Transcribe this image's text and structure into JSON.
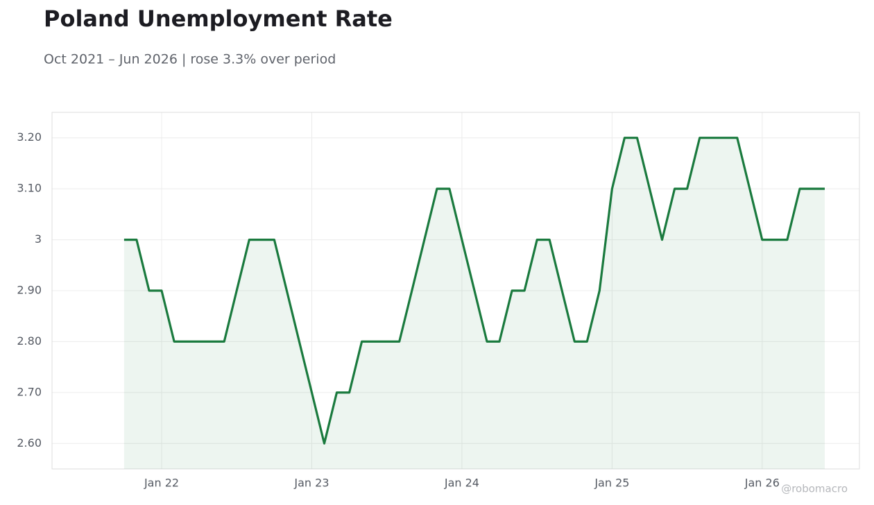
{
  "chart_data": {
    "type": "line",
    "title": "Poland Unemployment Rate",
    "subtitle": "Oct 2021 – Jun 2026 | rose 3.3% over period",
    "watermark": "@robomacro",
    "x": [
      "2021-10",
      "2021-11",
      "2021-12",
      "2022-01",
      "2022-02",
      "2022-03",
      "2022-04",
      "2022-05",
      "2022-06",
      "2022-07",
      "2022-08",
      "2022-09",
      "2022-10",
      "2022-11",
      "2022-12",
      "2023-01",
      "2023-02",
      "2023-03",
      "2023-04",
      "2023-05",
      "2023-06",
      "2023-07",
      "2023-08",
      "2023-09",
      "2023-10",
      "2023-11",
      "2023-12",
      "2024-01",
      "2024-02",
      "2024-03",
      "2024-04",
      "2024-05",
      "2024-06",
      "2024-07",
      "2024-08",
      "2024-09",
      "2024-10",
      "2024-11",
      "2024-12",
      "2025-01",
      "2025-02",
      "2025-03",
      "2025-04",
      "2025-05",
      "2025-06",
      "2025-07",
      "2025-08",
      "2025-09",
      "2025-10",
      "2025-11",
      "2025-12",
      "2026-01",
      "2026-02",
      "2026-03",
      "2026-04",
      "2026-05",
      "2026-06"
    ],
    "values": [
      3.0,
      3.0,
      2.9,
      2.9,
      2.8,
      2.8,
      2.8,
      2.8,
      2.8,
      2.9,
      3.0,
      3.0,
      3.0,
      2.9,
      2.8,
      2.7,
      2.6,
      2.7,
      2.7,
      2.8,
      2.8,
      2.8,
      2.8,
      2.9,
      3.0,
      3.1,
      3.1,
      3.0,
      2.9,
      2.8,
      2.8,
      2.9,
      2.9,
      3.0,
      3.0,
      2.9,
      2.8,
      2.8,
      2.9,
      3.1,
      3.2,
      3.2,
      3.1,
      3.0,
      3.1,
      3.1,
      3.2,
      3.2,
      3.2,
      3.2,
      3.1,
      3.0,
      3.0,
      3.0,
      3.1,
      3.1,
      3.1
    ],
    "color": "#1a7a3e",
    "ylim": [
      2.55,
      3.25
    ],
    "yticks": [
      {
        "value": 2.6,
        "label": "2.60"
      },
      {
        "value": 2.7,
        "label": "2.70"
      },
      {
        "value": 2.8,
        "label": "2.80"
      },
      {
        "value": 2.9,
        "label": "2.90"
      },
      3,
      {
        "value": 3.1,
        "label": "3.10"
      },
      {
        "value": 3.2,
        "label": "3.20"
      }
    ],
    "xticks": [
      {
        "value": "2022-01",
        "label": "Jan 22"
      },
      {
        "value": "2023-01",
        "label": "Jan 23"
      },
      {
        "value": "2024-01",
        "label": "Jan 24"
      },
      {
        "value": "2025-01",
        "label": "Jan 25"
      },
      {
        "value": "2026-01",
        "label": "Jan 26"
      }
    ],
    "grid": true
  }
}
